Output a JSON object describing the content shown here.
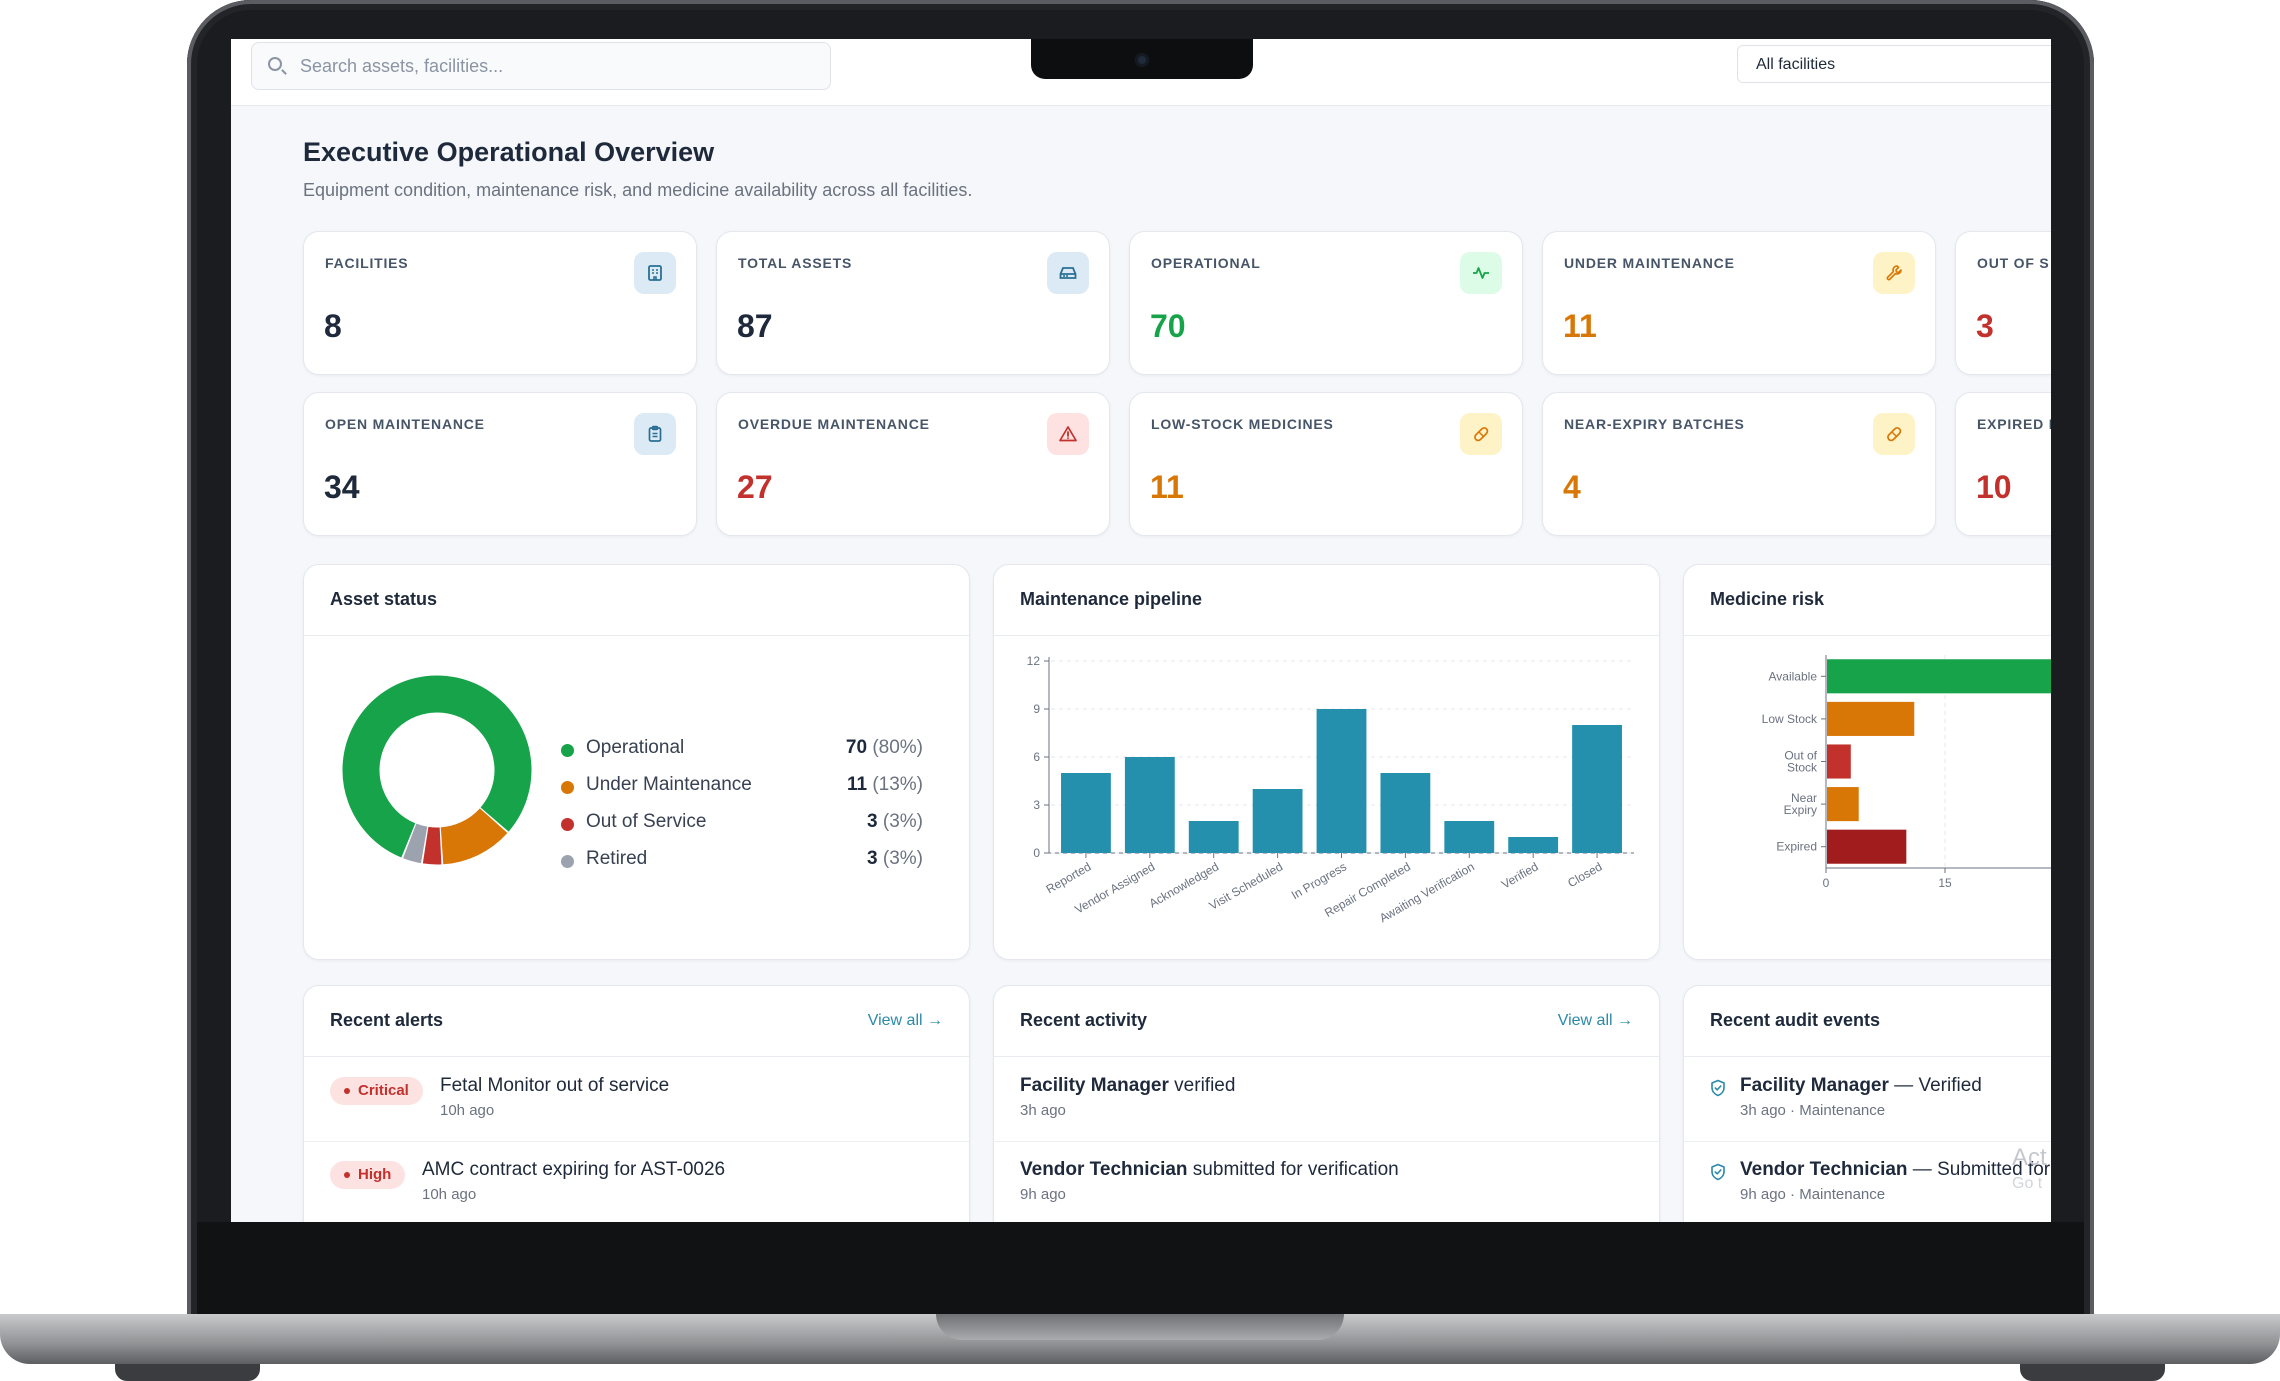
{
  "search": {
    "placeholder": "Search assets, facilities..."
  },
  "facility_filter": {
    "selected": "All facilities"
  },
  "header": {
    "title": "Executive Operational Overview",
    "subtitle": "Equipment condition, maintenance risk, and medicine availability across all facilities."
  },
  "kpis": [
    {
      "label": "FACILITIES",
      "value": "8",
      "icon": "building-icon",
      "color": "#1e293b",
      "icon_bg": "#dbeaf5",
      "icon_color": "#2a6f93"
    },
    {
      "label": "TOTAL ASSETS",
      "value": "87",
      "icon": "hard-drive-icon",
      "color": "#1e293b",
      "icon_bg": "#dbeaf5",
      "icon_color": "#2a6f93"
    },
    {
      "label": "OPERATIONAL",
      "value": "70",
      "icon": "activity-icon",
      "color": "#16a34a",
      "icon_bg": "#dcfce7",
      "icon_color": "#16a34a"
    },
    {
      "label": "UNDER MAINTENANCE",
      "value": "11",
      "icon": "wrench-icon",
      "color": "#d97706",
      "icon_bg": "#fef3c7",
      "icon_color": "#d97706"
    },
    {
      "label": "OUT OF S",
      "value": "3",
      "icon": "alert-icon",
      "color": "#c2312c",
      "icon_bg": "#fee2e2",
      "icon_color": "#c2312c"
    },
    {
      "label": "OPEN MAINTENANCE",
      "value": "34",
      "icon": "clipboard-icon",
      "color": "#1e293b",
      "icon_bg": "#dbeaf5",
      "icon_color": "#2a6f93"
    },
    {
      "label": "OVERDUE MAINTENANCE",
      "value": "27",
      "icon": "warning-triangle-icon",
      "color": "#c2312c",
      "icon_bg": "#fee2e2",
      "icon_color": "#c2312c"
    },
    {
      "label": "LOW-STOCK MEDICINES",
      "value": "11",
      "icon": "pill-icon",
      "color": "#d97706",
      "icon_bg": "#fef3c7",
      "icon_color": "#d97706"
    },
    {
      "label": "NEAR-EXPIRY BATCHES",
      "value": "4",
      "icon": "pill-icon",
      "color": "#d97706",
      "icon_bg": "#fef3c7",
      "icon_color": "#d97706"
    },
    {
      "label": "EXPIRED B",
      "value": "10",
      "icon": "pill-icon",
      "color": "#c2312c",
      "icon_bg": "#fee2e2",
      "icon_color": "#c2312c"
    }
  ],
  "asset_status": {
    "title": "Asset status",
    "colors": {
      "Operational": "#16a34a",
      "Under Maintenance": "#d97706",
      "Out of Service": "#c2312c",
      "Retired": "#9ca3af"
    },
    "legend": [
      {
        "label": "Operational",
        "count": "70",
        "pct": "(80%)",
        "color": "#16a34a"
      },
      {
        "label": "Under Maintenance",
        "count": "11",
        "pct": "(13%)",
        "color": "#d97706"
      },
      {
        "label": "Out of Service",
        "count": "3",
        "pct": "(3%)",
        "color": "#c2312c"
      },
      {
        "label": "Retired",
        "count": "3",
        "pct": "(3%)",
        "color": "#9ca3af"
      }
    ]
  },
  "maintenance_pipeline": {
    "title": "Maintenance pipeline",
    "bar_color": "#2490ad"
  },
  "medicine_risk": {
    "title": "Medicine risk"
  },
  "chart_data": [
    {
      "type": "pie",
      "title": "Asset status",
      "labels": [
        "Operational",
        "Under Maintenance",
        "Out of Service",
        "Retired"
      ],
      "values": [
        70,
        11,
        3,
        3
      ]
    },
    {
      "type": "bar",
      "title": "Maintenance pipeline",
      "categories": [
        "Reported",
        "Vendor Assigned",
        "Acknowledged",
        "Visit Scheduled",
        "In Progress",
        "Repair Completed",
        "Awaiting Verification",
        "Verified",
        "Closed"
      ],
      "values": [
        5,
        6,
        2,
        4,
        9,
        5,
        2,
        1,
        8
      ],
      "yticks": [
        0,
        3,
        6,
        9,
        12
      ],
      "ylim": [
        0,
        12
      ],
      "xlabel": "",
      "ylabel": ""
    },
    {
      "type": "bar",
      "orientation": "horizontal",
      "title": "Medicine risk",
      "categories": [
        "Available",
        "Low Stock",
        "Out of Stock",
        "Near Expiry",
        "Expired"
      ],
      "values": [
        40,
        11,
        3,
        4,
        10
      ],
      "colors": [
        "#16a34a",
        "#d97706",
        "#c2312c",
        "#d97706",
        "#a11d1d"
      ],
      "xticks": [
        0,
        15
      ],
      "xlabel": "",
      "ylabel": ""
    }
  ],
  "recent_alerts": {
    "title": "Recent alerts",
    "view_all": "View all →",
    "items": [
      {
        "severity": "Critical",
        "text": "Fetal Monitor out of service",
        "time": "10h ago"
      },
      {
        "severity": "High",
        "text": "AMC contract expiring for AST-0026",
        "time": "10h ago"
      }
    ]
  },
  "recent_activity": {
    "title": "Recent activity",
    "view_all": "View all →",
    "items": [
      {
        "actor": "Facility Manager",
        "action": " verified",
        "time": "3h ago"
      },
      {
        "actor": "Vendor Technician",
        "action": " submitted for verification",
        "time": "9h ago"
      }
    ]
  },
  "recent_audit": {
    "title": "Recent audit events",
    "items": [
      {
        "actor": "Facility Manager",
        "action": " — Verified",
        "time": "3h ago · Maintenance"
      },
      {
        "actor": "Vendor Technician",
        "action": " — Submitted for",
        "time": "9h ago · Maintenance"
      }
    ]
  },
  "watermark": {
    "line1": "Act",
    "line2": "Go t"
  }
}
